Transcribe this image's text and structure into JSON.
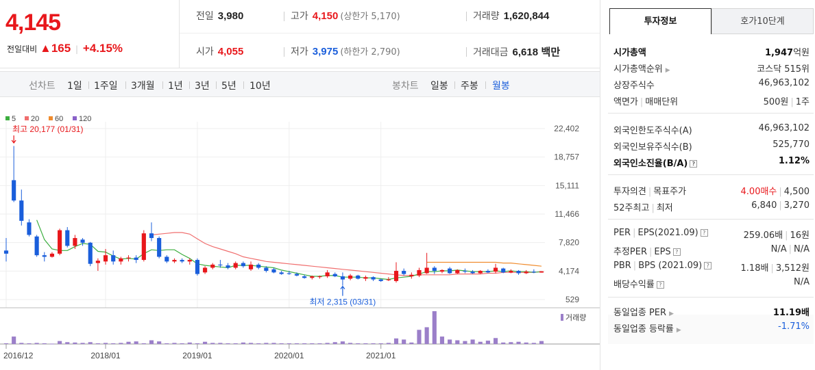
{
  "header": {
    "current_price": "4,145",
    "change_label": "전일대비",
    "change_arrow": "▲",
    "change_amount": "165",
    "change_sep": "|",
    "change_rate": "+4.15%"
  },
  "stats": {
    "prev_close_label": "전일",
    "prev_close": "3,980",
    "high_label": "고가",
    "high": "4,150",
    "upper_limit": "(상한가 5,170)",
    "volume_label": "거래량",
    "volume": "1,620,844",
    "open_label": "시가",
    "open": "4,055",
    "low_label": "저가",
    "low": "3,975",
    "lower_limit": "(하한가 2,790)",
    "amount_label": "거래대금",
    "amount": "6,618",
    "amount_unit": "백만"
  },
  "toolbar": {
    "line_chart_label": "선차트",
    "periods": [
      "1일",
      "1주일",
      "3개월",
      "1년",
      "3년",
      "5년",
      "10년"
    ],
    "candle_chart_label": "봉차트",
    "candles": [
      "일봉",
      "주봉",
      "월봉"
    ],
    "active_candle": "월봉"
  },
  "chart_data": {
    "type": "candlestick",
    "interval": "monthly",
    "moving_averages": [
      {
        "name": "5",
        "color": "#3cae3f"
      },
      {
        "name": "20",
        "color": "#f06e6e"
      },
      {
        "name": "60",
        "color": "#f08c2e"
      },
      {
        "name": "120",
        "color": "#8a62c9"
      }
    ],
    "y_ticks": [
      22402,
      18757,
      15111,
      11466,
      7820,
      4174,
      529
    ],
    "ylim": [
      529,
      22402
    ],
    "x_ticks": [
      "2016/12",
      "2018/01",
      "2019/01",
      "2020/01",
      "2021/01"
    ],
    "annotation_high": "최고 20,177 (01/31)",
    "annotation_low": "최저 2,315 (03/31)",
    "volume_label": "거래량",
    "up_color": "#e8171b",
    "down_color": "#1a5edb",
    "candles": [
      {
        "o": 6800,
        "h": 8400,
        "l": 5400,
        "c": 6400
      },
      {
        "o": 15800,
        "h": 20177,
        "l": 13000,
        "c": 13200
      },
      {
        "o": 13200,
        "h": 14600,
        "l": 10000,
        "c": 10600
      },
      {
        "o": 10400,
        "h": 10800,
        "l": 8600,
        "c": 8800
      },
      {
        "o": 8600,
        "h": 8800,
        "l": 6000,
        "c": 6200
      },
      {
        "o": 6200,
        "h": 6600,
        "l": 5400,
        "c": 6000
      },
      {
        "o": 6000,
        "h": 6600,
        "l": 5900,
        "c": 6400
      },
      {
        "o": 6400,
        "h": 9600,
        "l": 6200,
        "c": 9400
      },
      {
        "o": 9400,
        "h": 9800,
        "l": 7200,
        "c": 7400
      },
      {
        "o": 7400,
        "h": 8800,
        "l": 7000,
        "c": 8400
      },
      {
        "o": 8200,
        "h": 8400,
        "l": 7400,
        "c": 7800
      },
      {
        "o": 7800,
        "h": 7900,
        "l": 4800,
        "c": 5100
      },
      {
        "o": 5200,
        "h": 5800,
        "l": 4200,
        "c": 5500
      },
      {
        "o": 5400,
        "h": 7000,
        "l": 5000,
        "c": 6200
      },
      {
        "o": 6200,
        "h": 6800,
        "l": 5000,
        "c": 5400
      },
      {
        "o": 5400,
        "h": 6000,
        "l": 5000,
        "c": 5800
      },
      {
        "o": 5800,
        "h": 6200,
        "l": 5400,
        "c": 5900
      },
      {
        "o": 5900,
        "h": 6200,
        "l": 5200,
        "c": 5600
      },
      {
        "o": 5600,
        "h": 9400,
        "l": 5400,
        "c": 9000
      },
      {
        "o": 9000,
        "h": 10400,
        "l": 8000,
        "c": 8400
      },
      {
        "o": 8400,
        "h": 8600,
        "l": 5800,
        "c": 6000
      },
      {
        "o": 6000,
        "h": 6200,
        "l": 5200,
        "c": 5400
      },
      {
        "o": 5400,
        "h": 5800,
        "l": 5200,
        "c": 5600
      },
      {
        "o": 5600,
        "h": 5800,
        "l": 5200,
        "c": 5400
      },
      {
        "o": 5400,
        "h": 5800,
        "l": 5000,
        "c": 5600
      },
      {
        "o": 5600,
        "h": 5800,
        "l": 3600,
        "c": 3800
      },
      {
        "o": 4000,
        "h": 4800,
        "l": 3800,
        "c": 4600
      },
      {
        "o": 4600,
        "h": 5200,
        "l": 4400,
        "c": 5000
      },
      {
        "o": 5000,
        "h": 5600,
        "l": 4600,
        "c": 4900
      },
      {
        "o": 4900,
        "h": 5200,
        "l": 4400,
        "c": 4600
      },
      {
        "o": 4600,
        "h": 5400,
        "l": 4400,
        "c": 5200
      },
      {
        "o": 5200,
        "h": 5400,
        "l": 4600,
        "c": 4800
      },
      {
        "o": 4400,
        "h": 5400,
        "l": 4200,
        "c": 5000
      },
      {
        "o": 5000,
        "h": 5200,
        "l": 4400,
        "c": 4600
      },
      {
        "o": 4600,
        "h": 4800,
        "l": 4000,
        "c": 4200
      },
      {
        "o": 4400,
        "h": 4600,
        "l": 3900,
        "c": 4000
      },
      {
        "o": 4000,
        "h": 4200,
        "l": 3700,
        "c": 3800
      },
      {
        "o": 3900,
        "h": 4200,
        "l": 3700,
        "c": 3800
      },
      {
        "o": 3800,
        "h": 4000,
        "l": 3500,
        "c": 3600
      },
      {
        "o": 3500,
        "h": 3700,
        "l": 3200,
        "c": 3300
      },
      {
        "o": 3300,
        "h": 3600,
        "l": 3100,
        "c": 3500
      },
      {
        "o": 3400,
        "h": 3600,
        "l": 3200,
        "c": 3500
      },
      {
        "o": 3500,
        "h": 4300,
        "l": 3300,
        "c": 4000
      },
      {
        "o": 3800,
        "h": 4000,
        "l": 3400,
        "c": 3500
      },
      {
        "o": 3500,
        "h": 4000,
        "l": 2315,
        "c": 3100
      },
      {
        "o": 3200,
        "h": 3800,
        "l": 3000,
        "c": 3600
      },
      {
        "o": 3600,
        "h": 3700,
        "l": 3100,
        "c": 3200
      },
      {
        "o": 3200,
        "h": 3600,
        "l": 2900,
        "c": 3400
      },
      {
        "o": 3400,
        "h": 3500,
        "l": 2900,
        "c": 3100
      },
      {
        "o": 3100,
        "h": 3200,
        "l": 2800,
        "c": 2900
      },
      {
        "o": 3000,
        "h": 3400,
        "l": 2900,
        "c": 3100
      },
      {
        "o": 2900,
        "h": 5300,
        "l": 2700,
        "c": 4200
      },
      {
        "o": 4200,
        "h": 4500,
        "l": 3600,
        "c": 3800
      },
      {
        "o": 3500,
        "h": 4000,
        "l": 3200,
        "c": 3700
      },
      {
        "o": 3600,
        "h": 4600,
        "l": 3400,
        "c": 4300
      },
      {
        "o": 3900,
        "h": 6500,
        "l": 3800,
        "c": 4600
      },
      {
        "o": 4600,
        "h": 4800,
        "l": 3800,
        "c": 4200
      },
      {
        "o": 4100,
        "h": 4400,
        "l": 3900,
        "c": 4300
      },
      {
        "o": 4500,
        "h": 4700,
        "l": 3800,
        "c": 3900
      },
      {
        "o": 3900,
        "h": 4400,
        "l": 3800,
        "c": 4300
      },
      {
        "o": 4200,
        "h": 4500,
        "l": 3900,
        "c": 4100
      },
      {
        "o": 4100,
        "h": 4300,
        "l": 3800,
        "c": 3900
      },
      {
        "o": 3900,
        "h": 4300,
        "l": 3800,
        "c": 4200
      },
      {
        "o": 4200,
        "h": 4400,
        "l": 3900,
        "c": 4000
      },
      {
        "o": 4100,
        "h": 5100,
        "l": 3900,
        "c": 4600
      },
      {
        "o": 4500,
        "h": 4600,
        "l": 3900,
        "c": 4000
      },
      {
        "o": 4000,
        "h": 4400,
        "l": 3900,
        "c": 4200
      },
      {
        "o": 4200,
        "h": 4300,
        "l": 3700,
        "c": 3900
      },
      {
        "o": 3900,
        "h": 4300,
        "l": 3800,
        "c": 4100
      },
      {
        "o": 4100,
        "h": 4400,
        "l": 3900,
        "c": 4000
      },
      {
        "o": 3980,
        "h": 4150,
        "l": 3975,
        "c": 4145
      }
    ],
    "ma5": [
      null,
      null,
      null,
      null,
      10700,
      8200,
      7000,
      6800,
      6800,
      7300,
      7700,
      7600,
      6700,
      6600,
      6100,
      5700,
      5800,
      5700,
      6400,
      6900,
      6800,
      6900,
      6900,
      6300,
      5800,
      5100,
      4900,
      4800,
      4700,
      4600,
      4900,
      4900,
      4900,
      4800,
      4700,
      4600,
      4300,
      4100,
      3900,
      3700,
      3500,
      3500,
      3600,
      3600,
      3400,
      3400,
      3400,
      3300,
      3300,
      3200,
      3100,
      3300,
      3400,
      3500,
      3800,
      4100,
      4100,
      4200,
      4200,
      4300,
      4200,
      4100,
      4100,
      4100,
      4200,
      4100,
      4200,
      4100,
      4100,
      4000,
      4100
    ],
    "ma20": [
      null,
      null,
      null,
      null,
      null,
      null,
      null,
      null,
      null,
      null,
      null,
      null,
      null,
      null,
      null,
      null,
      null,
      null,
      null,
      8800,
      8900,
      9000,
      9100,
      9100,
      8900,
      8300,
      7700,
      7300,
      7000,
      6700,
      6400,
      6000,
      5800,
      5600,
      5400,
      5300,
      5200,
      5100,
      5000,
      4900,
      4800,
      4700,
      4600,
      4500,
      4400,
      4300,
      4200,
      4100,
      4000,
      3900,
      3800,
      3700,
      3600,
      3600,
      3700,
      3700,
      3700,
      3700,
      3700,
      3800,
      3800,
      3800,
      3800,
      3900,
      3900,
      4000,
      4000,
      4000,
      4000,
      4000,
      4100
    ],
    "ma60": [
      null,
      null,
      null,
      null,
      null,
      null,
      null,
      null,
      null,
      null,
      null,
      null,
      null,
      null,
      null,
      null,
      null,
      null,
      null,
      null,
      null,
      null,
      null,
      null,
      null,
      null,
      null,
      null,
      null,
      null,
      null,
      null,
      null,
      null,
      null,
      null,
      null,
      null,
      null,
      null,
      null,
      null,
      null,
      null,
      null,
      null,
      null,
      null,
      null,
      null,
      null,
      null,
      null,
      null,
      null,
      5300,
      5300,
      5300,
      5300,
      5300,
      5300,
      5300,
      5300,
      5300,
      5300,
      5200,
      5200,
      5100,
      5000,
      4900,
      4800
    ],
    "volume": [
      2,
      20,
      3,
      2,
      3,
      2,
      1,
      8,
      5,
      4,
      3,
      5,
      2,
      3,
      2,
      3,
      6,
      7,
      2,
      10,
      7,
      2,
      3,
      2,
      4,
      2,
      6,
      3,
      3,
      2,
      2,
      4,
      3,
      2,
      3,
      3,
      2,
      2,
      2,
      2,
      2,
      2,
      3,
      5,
      7,
      3,
      2,
      2,
      2,
      2,
      3,
      15,
      12,
      4,
      38,
      45,
      88,
      20,
      12,
      10,
      8,
      12,
      6,
      9,
      16,
      4,
      5,
      6,
      4,
      3,
      8
    ]
  },
  "tabs": {
    "active": "투자정보",
    "inactive": "호가10단계"
  },
  "invest": {
    "market_cap_label": "시가총액",
    "market_cap": "1,947",
    "market_cap_unit": "억원",
    "rank_label": "시가총액순위",
    "rank": "코스닥 515위",
    "shares_label": "상장주식수",
    "shares": "46,963,102",
    "par_label": "액면가",
    "trade_unit_label": "매매단위",
    "par": "500원",
    "trade_unit": "1주",
    "foreign_limit_label": "외국인한도주식수(A)",
    "foreign_limit": "46,963,102",
    "foreign_hold_label": "외국인보유주식수(B)",
    "foreign_hold": "525,770",
    "foreign_ratio_label": "외국인소진율(B/A)",
    "foreign_ratio": "1.12%",
    "opinion_label": "투자의견",
    "target_label": "목표주가",
    "opinion": "4.00매수",
    "target": "4,500",
    "w52_high_label": "52주최고",
    "w52_low_label": "최저",
    "w52_high": "6,840",
    "w52_low": "3,270",
    "per_label": "PER",
    "eps_label": "EPS(2021.09)",
    "per": "259.06배",
    "eps": "16원",
    "est_per_label": "추정PER",
    "est_eps_label": "EPS",
    "est_per": "N/A",
    "est_eps": "N/A",
    "pbr_label": "PBR",
    "bps_label": "BPS (2021.09)",
    "pbr": "1.18배",
    "bps": "3,512원",
    "div_label": "배당수익률",
    "div": "N/A",
    "sector_per_label": "동일업종 PER",
    "sector_per": "11.19배",
    "sector_rate_label": "동일업종 등락률",
    "sector_rate": "-1.71%"
  }
}
